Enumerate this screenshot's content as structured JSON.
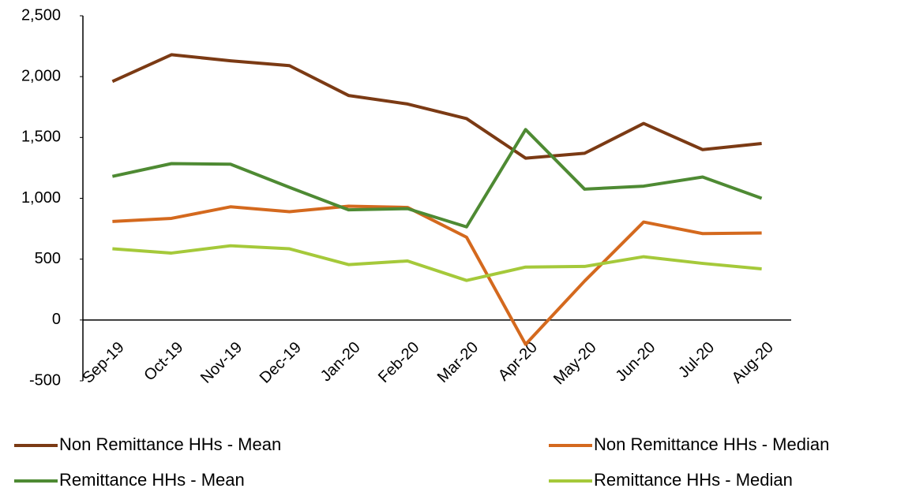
{
  "chart_data": {
    "type": "line",
    "categories": [
      "Sep-19",
      "Oct-19",
      "Nov-19",
      "Dec-19",
      "Jan-20",
      "Feb-20",
      "Mar-20",
      "Apr-20",
      "May-20",
      "Jun-20",
      "Jul-20",
      "Aug-20"
    ],
    "series": [
      {
        "name": "Non Remittance HHs - Mean",
        "color": "#7b3a14",
        "values": [
          1960,
          2180,
          2130,
          2090,
          1845,
          1775,
          1655,
          1330,
          1370,
          1615,
          1400,
          1450
        ]
      },
      {
        "name": "Non Remittance HHs - Median",
        "color": "#d4691e",
        "values": [
          810,
          835,
          930,
          890,
          935,
          925,
          680,
          -200,
          320,
          805,
          710,
          715
        ]
      },
      {
        "name": "Remittance HHs - Mean",
        "color": "#4e8a33",
        "values": [
          1180,
          1285,
          1280,
          1090,
          905,
          915,
          765,
          1565,
          1075,
          1100,
          1175,
          1000
        ]
      },
      {
        "name": "Remittance HHs - Median",
        "color": "#a5c93a",
        "values": [
          585,
          550,
          610,
          585,
          455,
          485,
          325,
          435,
          440,
          520,
          465,
          420
        ]
      }
    ],
    "ylim": [
      -500,
      2500
    ],
    "yticks": [
      -500,
      0,
      500,
      {
        "value": 1000,
        "label": "1,000"
      },
      {
        "value": 1500,
        "label": "1,500"
      },
      {
        "value": 2000,
        "label": "2,000"
      },
      {
        "value": 2500,
        "label": "2,500"
      }
    ],
    "grid": false,
    "legend": "bottom"
  }
}
